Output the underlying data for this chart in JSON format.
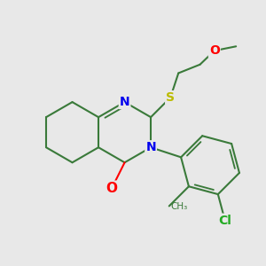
{
  "background_color": "#e8e8e8",
  "bond_color": "#3a7a3a",
  "bond_width": 1.5,
  "atom_colors": {
    "N": "#0000ee",
    "O": "#ff0000",
    "S": "#bbbb00",
    "Cl": "#22aa22",
    "C": "#3a7a3a"
  },
  "font_size": 10,
  "figsize": [
    3.0,
    3.0
  ],
  "dpi": 100
}
